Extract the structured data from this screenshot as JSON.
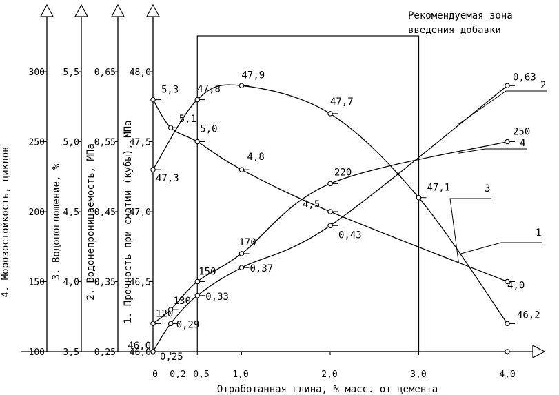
{
  "chart_data": {
    "type": "line",
    "title_lines": [
      "Рекомендуемая зона",
      "введения добавки"
    ],
    "xlabel": "Отработанная глина, % масс. от цемента",
    "x_ticks": [
      "0",
      "0,2",
      "0,5",
      "1,0",
      "2,0",
      "3,0",
      "4,0"
    ],
    "x_tick_values": [
      0,
      0.2,
      0.5,
      1.0,
      2.0,
      3.0,
      4.0
    ],
    "xlim": [
      0,
      4.0
    ],
    "recommended_zone": [
      0.5,
      3.0
    ],
    "axes": [
      {
        "id": "frost",
        "label": "4. Морозостойкость, циклов",
        "min": 100,
        "max": 300,
        "ticks": [
          "100",
          "150",
          "200",
          "250",
          "300"
        ],
        "tick_values": [
          100,
          150,
          200,
          250,
          300
        ]
      },
      {
        "id": "water_abs",
        "label": "3. Водопоглощение, %",
        "min": 3.5,
        "max": 5.5,
        "ticks": [
          "3,5",
          "4,0",
          "4,5",
          "5,0",
          "5,5"
        ],
        "tick_values": [
          3.5,
          4.0,
          4.5,
          5.0,
          5.5
        ]
      },
      {
        "id": "perm",
        "label": "2. Водонепроницаемость, МПа",
        "min": 0.25,
        "max": 0.65,
        "ticks": [
          "0,25",
          "0,35",
          "0,45",
          "0,55",
          "0,65"
        ],
        "tick_values": [
          0.25,
          0.35,
          0.45,
          0.55,
          0.65
        ]
      },
      {
        "id": "strength",
        "label": "1. Прочность при сжатии (кубы), МПа",
        "min": 46.0,
        "max": 48.0,
        "ticks": [
          "46,0",
          "46,5",
          "47,0",
          "47,5",
          "48,0"
        ],
        "tick_values": [
          46.0,
          46.5,
          47.0,
          47.5,
          48.0
        ]
      }
    ],
    "series": [
      {
        "name": "1",
        "axis": "strength",
        "points": [
          {
            "x": 0,
            "y": 47.3,
            "label": "47,3"
          },
          {
            "x": 0.5,
            "y": 47.8,
            "label": "47,8"
          },
          {
            "x": 1.0,
            "y": 47.9,
            "label": "47,9"
          },
          {
            "x": 2.0,
            "y": 47.7,
            "label": "47,7"
          },
          {
            "x": 3.0,
            "y": 47.1,
            "label": "47,1"
          },
          {
            "x": 4.0,
            "y": 46.2,
            "label": "46,2"
          }
        ]
      },
      {
        "name": "2",
        "axis": "perm",
        "points": [
          {
            "x": 0,
            "y": 0.25,
            "label": "0,25"
          },
          {
            "x": 0.2,
            "y": 0.29,
            "label": "0,29"
          },
          {
            "x": 0.5,
            "y": 0.33,
            "label": "0,33"
          },
          {
            "x": 1.0,
            "y": 0.37,
            "label": "0,37"
          },
          {
            "x": 2.0,
            "y": 0.43,
            "label": "0,43"
          },
          {
            "x": 4.0,
            "y": 0.63,
            "label": "0,63"
          }
        ]
      },
      {
        "name": "3",
        "axis": "water_abs",
        "points": [
          {
            "x": 0,
            "y": 5.3,
            "label": "5,3"
          },
          {
            "x": 0.2,
            "y": 5.1,
            "label": "5,1"
          },
          {
            "x": 0.5,
            "y": 5.0,
            "label": "5,0"
          },
          {
            "x": 1.0,
            "y": 4.8,
            "label": "4,8"
          },
          {
            "x": 2.0,
            "y": 4.5,
            "label": "4,5"
          },
          {
            "x": 4.0,
            "y": 4.0,
            "label": "4,0"
          }
        ]
      },
      {
        "name": "4",
        "axis": "frost",
        "points": [
          {
            "x": 0,
            "y": 120,
            "label": "120"
          },
          {
            "x": 0.2,
            "y": 130,
            "label": "130"
          },
          {
            "x": 0.5,
            "y": 150,
            "label": "150"
          },
          {
            "x": 1.0,
            "y": 170,
            "label": "170"
          },
          {
            "x": 2.0,
            "y": 220,
            "label": "220"
          },
          {
            "x": 4.0,
            "y": 250,
            "label": "250"
          }
        ]
      }
    ],
    "extra_points": [
      {
        "x": 0,
        "y": 46.0,
        "label": "46,0",
        "axis": "strength"
      }
    ],
    "grid": false,
    "legend": "curve callouts on the right"
  }
}
